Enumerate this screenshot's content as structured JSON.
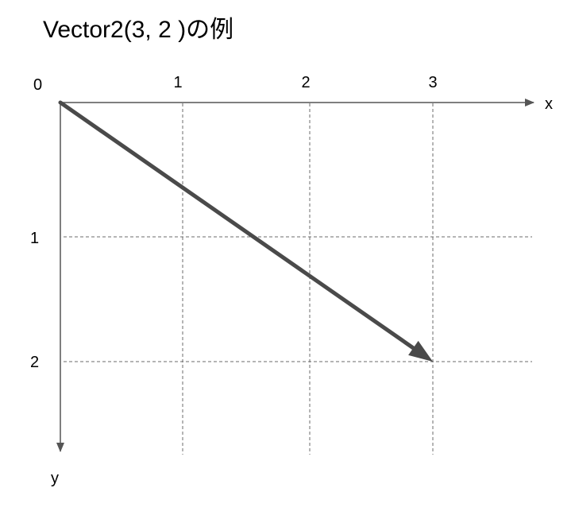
{
  "title": "Vector2(3, 2 )の例",
  "origin_label": "0",
  "x_axis": {
    "label": "x",
    "ticks": [
      "1",
      "2",
      "3"
    ]
  },
  "y_axis": {
    "label": "y",
    "ticks": [
      "1",
      "2"
    ]
  },
  "vector": {
    "x": 3,
    "y": 2
  },
  "colors": {
    "vector": "#4a4a4a",
    "axis": "#555555",
    "grid": "#6b6b6b",
    "text": "#000000"
  }
}
